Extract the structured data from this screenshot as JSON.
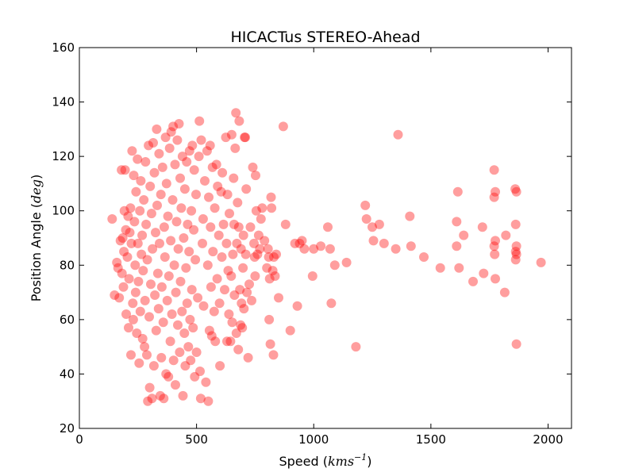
{
  "chart_data": {
    "type": "scatter",
    "title": "HICACTus STEREO-Ahead",
    "xlabel": "Speed",
    "xlabel_unit": "kms",
    "xlabel_unit_exp": "−1",
    "ylabel": "Position Angle",
    "ylabel_unit": "deg",
    "xlim": [
      0,
      2100
    ],
    "ylim": [
      20,
      160
    ],
    "xticks": [
      0,
      500,
      1000,
      1500,
      2000
    ],
    "yticks": [
      20,
      40,
      60,
      80,
      100,
      120,
      140,
      160
    ],
    "marker_color": "#ff0000",
    "marker_alpha": 0.38,
    "grid": false,
    "series": [
      {
        "points": [
          [
            140,
            97
          ],
          [
            150,
            69
          ],
          [
            160,
            81
          ],
          [
            165,
            79
          ],
          [
            170,
            68
          ],
          [
            175,
            89
          ],
          [
            180,
            115
          ],
          [
            182,
            77
          ],
          [
            185,
            90
          ],
          [
            188,
            72
          ],
          [
            190,
            85
          ],
          [
            192,
            100
          ],
          [
            195,
            115
          ],
          [
            198,
            93
          ],
          [
            200,
            62
          ],
          [
            205,
            83
          ],
          [
            208,
            98
          ],
          [
            210,
            57
          ],
          [
            212,
            75
          ],
          [
            215,
            92
          ],
          [
            218,
            101
          ],
          [
            220,
            47
          ],
          [
            222,
            88
          ],
          [
            225,
            122
          ],
          [
            228,
            66
          ],
          [
            230,
            60
          ],
          [
            232,
            113
          ],
          [
            235,
            96
          ],
          [
            238,
            80
          ],
          [
            240,
            70
          ],
          [
            242,
            107
          ],
          [
            245,
            55
          ],
          [
            248,
            119
          ],
          [
            250,
            88
          ],
          [
            252,
            74
          ],
          [
            255,
            44
          ],
          [
            258,
            100
          ],
          [
            260,
            63
          ],
          [
            262,
            111
          ],
          [
            265,
            84
          ],
          [
            268,
            91
          ],
          [
            270,
            53
          ],
          [
            272,
            78
          ],
          [
            275,
            104
          ],
          [
            278,
            50
          ],
          [
            280,
            67
          ],
          [
            282,
            118
          ],
          [
            285,
            95
          ],
          [
            288,
            47
          ],
          [
            290,
            82
          ],
          [
            292,
            30
          ],
          [
            295,
            124
          ],
          [
            298,
            61
          ],
          [
            300,
            35
          ],
          [
            302,
            109
          ],
          [
            305,
            73
          ],
          [
            308,
            99
          ],
          [
            310,
            31
          ],
          [
            312,
            86
          ],
          [
            315,
            125
          ],
          [
            318,
            43
          ],
          [
            320,
            114
          ],
          [
            322,
            69
          ],
          [
            325,
            92
          ],
          [
            328,
            56
          ],
          [
            330,
            130
          ],
          [
            332,
            102
          ],
          [
            335,
            77
          ],
          [
            338,
            64
          ],
          [
            340,
            121
          ],
          [
            342,
            88
          ],
          [
            345,
            32
          ],
          [
            348,
            106
          ],
          [
            350,
            46
          ],
          [
            352,
            72
          ],
          [
            355,
            116
          ],
          [
            358,
            59
          ],
          [
            360,
            31
          ],
          [
            362,
            94
          ],
          [
            365,
            83
          ],
          [
            368,
            127
          ],
          [
            370,
            40
          ],
          [
            372,
            110
          ],
          [
            375,
            67
          ],
          [
            378,
            98
          ],
          [
            380,
            39
          ],
          [
            382,
            76
          ],
          [
            385,
            123
          ],
          [
            388,
            52
          ],
          [
            390,
            89
          ],
          [
            392,
            129
          ],
          [
            395,
            62
          ],
          [
            398,
            104
          ],
          [
            400,
            131
          ],
          [
            402,
            45
          ],
          [
            405,
            80
          ],
          [
            408,
            117
          ],
          [
            410,
            36
          ],
          [
            412,
            70
          ],
          [
            415,
            96
          ],
          [
            418,
            126
          ],
          [
            420,
            58
          ],
          [
            422,
            86
          ],
          [
            425,
            132
          ],
          [
            428,
            48
          ],
          [
            430,
            112
          ],
          [
            432,
            74
          ],
          [
            435,
            101
          ],
          [
            438,
            63
          ],
          [
            440,
            120
          ],
          [
            442,
            32
          ],
          [
            445,
            90
          ],
          [
            448,
            55
          ],
          [
            450,
            108
          ],
          [
            452,
            43
          ],
          [
            455,
            79
          ],
          [
            458,
            118
          ],
          [
            460,
            66
          ],
          [
            462,
            95
          ],
          [
            465,
            50
          ],
          [
            468,
            85
          ],
          [
            470,
            122
          ],
          [
            472,
            60
          ],
          [
            475,
            45
          ],
          [
            478,
            100
          ],
          [
            480,
            71
          ],
          [
            482,
            124
          ],
          [
            485,
            57
          ],
          [
            488,
            93
          ],
          [
            490,
            115
          ],
          [
            492,
            39
          ],
          [
            495,
            82
          ],
          [
            498,
            106
          ],
          [
            500,
            48
          ],
          [
            505,
            68
          ],
          [
            510,
            120
          ],
          [
            512,
            133
          ],
          [
            515,
            41
          ],
          [
            518,
            31
          ],
          [
            520,
            126
          ],
          [
            525,
            88
          ],
          [
            528,
            97
          ],
          [
            530,
            65
          ],
          [
            535,
            111
          ],
          [
            540,
            37
          ],
          [
            545,
            122
          ],
          [
            548,
            80
          ],
          [
            550,
            30
          ],
          [
            552,
            105
          ],
          [
            555,
            56
          ],
          [
            558,
            124
          ],
          [
            560,
            94
          ],
          [
            562,
            72
          ],
          [
            565,
            54
          ],
          [
            568,
            116
          ],
          [
            570,
            85
          ],
          [
            575,
            63
          ],
          [
            578,
            101
          ],
          [
            580,
            52
          ],
          [
            585,
            117
          ],
          [
            588,
            75
          ],
          [
            590,
            109
          ],
          [
            595,
            91
          ],
          [
            598,
            66
          ],
          [
            600,
            43
          ],
          [
            605,
            107
          ],
          [
            608,
            83
          ],
          [
            610,
            114
          ],
          [
            615,
            95
          ],
          [
            620,
            71
          ],
          [
            625,
            127
          ],
          [
            628,
            88
          ],
          [
            630,
            52
          ],
          [
            632,
            106
          ],
          [
            635,
            78
          ],
          [
            638,
            62
          ],
          [
            640,
            99
          ],
          [
            645,
            52
          ],
          [
            648,
            76
          ],
          [
            650,
            128
          ],
          [
            652,
            59
          ],
          [
            655,
            84
          ],
          [
            658,
            112
          ],
          [
            660,
            95
          ],
          [
            662,
            69
          ],
          [
            665,
            123
          ],
          [
            668,
            136
          ],
          [
            670,
            55
          ],
          [
            672,
            88
          ],
          [
            675,
            103
          ],
          [
            678,
            49
          ],
          [
            680,
            94
          ],
          [
            682,
            133
          ],
          [
            685,
            71
          ],
          [
            688,
            58
          ],
          [
            690,
            86
          ],
          [
            692,
            66
          ],
          [
            695,
            57
          ],
          [
            698,
            79
          ],
          [
            700,
            91
          ],
          [
            702,
            64
          ],
          [
            705,
            127
          ],
          [
            708,
            127
          ],
          [
            710,
            84
          ],
          [
            712,
            108
          ],
          [
            715,
            70
          ],
          [
            720,
            46
          ],
          [
            725,
            73
          ],
          [
            730,
            94
          ],
          [
            735,
            67
          ],
          [
            740,
            116
          ],
          [
            745,
            88
          ],
          [
            748,
            83
          ],
          [
            750,
            76
          ],
          [
            752,
            113
          ],
          [
            755,
            100
          ],
          [
            760,
            84
          ],
          [
            765,
            91
          ],
          [
            770,
            86
          ],
          [
            775,
            97
          ],
          [
            780,
            101
          ],
          [
            790,
            89
          ],
          [
            800,
            79
          ],
          [
            805,
            86
          ],
          [
            808,
            83
          ],
          [
            810,
            60
          ],
          [
            812,
            75
          ],
          [
            815,
            51
          ],
          [
            818,
            105
          ],
          [
            820,
            101
          ],
          [
            825,
            78
          ],
          [
            828,
            47
          ],
          [
            830,
            83
          ],
          [
            835,
            76
          ],
          [
            840,
            84
          ],
          [
            850,
            68
          ],
          [
            870,
            131
          ],
          [
            880,
            95
          ],
          [
            900,
            56
          ],
          [
            920,
            88
          ],
          [
            930,
            65
          ],
          [
            940,
            88
          ],
          [
            950,
            89
          ],
          [
            960,
            86
          ],
          [
            995,
            76
          ],
          [
            1000,
            86
          ],
          [
            1030,
            87
          ],
          [
            1060,
            94
          ],
          [
            1070,
            86
          ],
          [
            1075,
            66
          ],
          [
            1090,
            80
          ],
          [
            1140,
            81
          ],
          [
            1180,
            50
          ],
          [
            1220,
            102
          ],
          [
            1225,
            97
          ],
          [
            1250,
            94
          ],
          [
            1255,
            89
          ],
          [
            1280,
            95
          ],
          [
            1300,
            88
          ],
          [
            1350,
            86
          ],
          [
            1360,
            128
          ],
          [
            1410,
            98
          ],
          [
            1415,
            87
          ],
          [
            1470,
            83
          ],
          [
            1540,
            79
          ],
          [
            1610,
            96
          ],
          [
            1615,
            107
          ],
          [
            1610,
            87
          ],
          [
            1620,
            79
          ],
          [
            1640,
            91
          ],
          [
            1680,
            74
          ],
          [
            1720,
            94
          ],
          [
            1725,
            77
          ],
          [
            1770,
            115
          ],
          [
            1775,
            107
          ],
          [
            1770,
            105
          ],
          [
            1775,
            89
          ],
          [
            1770,
            87
          ],
          [
            1772,
            84
          ],
          [
            1775,
            75
          ],
          [
            1815,
            70
          ],
          [
            1820,
            91
          ],
          [
            1860,
            108
          ],
          [
            1865,
            107
          ],
          [
            1862,
            95
          ],
          [
            1865,
            87
          ],
          [
            1862,
            85
          ],
          [
            1865,
            84
          ],
          [
            1862,
            82
          ],
          [
            1865,
            51
          ],
          [
            1970,
            81
          ]
        ]
      }
    ]
  }
}
